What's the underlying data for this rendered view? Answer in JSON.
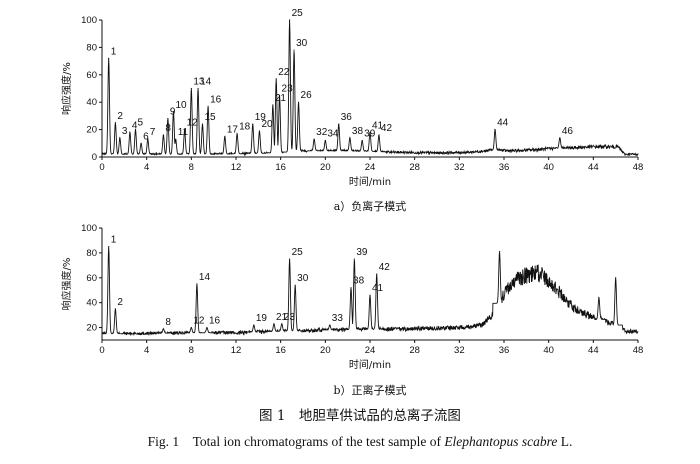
{
  "figure": {
    "title_cn": "图 1　地胆草供试品的总离子流图",
    "title_en_prefix": "Fig. 1　Total ion chromatograms of the test sample of ",
    "title_en_species": "Elephantopus scabre",
    "title_en_suffix": " L."
  },
  "chart_data": [
    {
      "type": "line",
      "subtitle": "a）负离子模式",
      "xlabel": "时间/min",
      "ylabel": "响应强度/%",
      "xlim": [
        0,
        48
      ],
      "ylim": [
        0,
        100
      ],
      "xticks": [
        0,
        4,
        8,
        12,
        16,
        20,
        24,
        28,
        32,
        36,
        40,
        44,
        48
      ],
      "yticks": [
        0,
        20,
        40,
        60,
        80,
        100
      ],
      "baseline": 2,
      "noise": 0.8,
      "background": [
        [
          0,
          2
        ],
        [
          10,
          2
        ],
        [
          16,
          3
        ],
        [
          18,
          4.5
        ],
        [
          22,
          4.5
        ],
        [
          26,
          3.5
        ],
        [
          30,
          3
        ],
        [
          33,
          3.5
        ],
        [
          35,
          5
        ],
        [
          37,
          4.5
        ],
        [
          40,
          6
        ],
        [
          44,
          7.5
        ],
        [
          46.2,
          7.5
        ],
        [
          46.8,
          2
        ],
        [
          48,
          2
        ]
      ],
      "line_color": "#111111",
      "peaks": [
        {
          "label": "1",
          "rt": 0.6,
          "height": 72
        },
        {
          "label": "2",
          "rt": 1.2,
          "height": 25
        },
        {
          "label": "3",
          "rt": 1.6,
          "height": 14
        },
        {
          "label": "4",
          "rt": 2.5,
          "height": 18
        },
        {
          "label": "5",
          "rt": 3.0,
          "height": 20
        },
        {
          "label": "6",
          "rt": 3.5,
          "height": 10
        },
        {
          "label": "7",
          "rt": 4.1,
          "height": 13
        },
        {
          "label": "8",
          "rt": 5.5,
          "height": 16
        },
        {
          "label": "9",
          "rt": 5.9,
          "height": 28
        },
        {
          "label": "10",
          "rt": 6.4,
          "height": 33
        },
        {
          "label": "11",
          "rt": 6.6,
          "height": 13
        },
        {
          "label": "12",
          "rt": 7.4,
          "height": 20
        },
        {
          "label": "13",
          "rt": 8.0,
          "height": 50
        },
        {
          "label": "14",
          "rt": 8.6,
          "height": 50
        },
        {
          "label": "15",
          "rt": 9.0,
          "height": 24
        },
        {
          "label": "16",
          "rt": 9.5,
          "height": 37
        },
        {
          "label": "17",
          "rt": 11.0,
          "height": 15
        },
        {
          "label": "18",
          "rt": 12.1,
          "height": 17
        },
        {
          "label": "19",
          "rt": 13.5,
          "height": 24
        },
        {
          "label": "20",
          "rt": 14.1,
          "height": 19
        },
        {
          "label": "21",
          "rt": 15.3,
          "height": 38
        },
        {
          "label": "22",
          "rt": 15.6,
          "height": 57
        },
        {
          "label": "23",
          "rt": 15.9,
          "height": 45
        },
        {
          "label": "25",
          "rt": 16.8,
          "height": 100
        },
        {
          "label": "26",
          "rt": 17.6,
          "height": 40
        },
        {
          "label": "30",
          "rt": 17.2,
          "height": 78
        },
        {
          "label": "32",
          "rt": 19.0,
          "height": 13
        },
        {
          "label": "34",
          "rt": 20.0,
          "height": 12
        },
        {
          "label": "36",
          "rt": 21.2,
          "height": 24
        },
        {
          "label": "38",
          "rt": 22.2,
          "height": 14
        },
        {
          "label": "39",
          "rt": 23.3,
          "height": 12
        },
        {
          "label": "41",
          "rt": 24.0,
          "height": 18
        },
        {
          "label": "42",
          "rt": 24.8,
          "height": 16
        },
        {
          "label": "44",
          "rt": 35.2,
          "height": 20
        },
        {
          "label": "46",
          "rt": 41.0,
          "height": 14
        }
      ]
    },
    {
      "type": "line",
      "subtitle": "b）正离子模式",
      "xlabel": "时间/min",
      "ylabel": "响应强度/%",
      "xlim": [
        0,
        48
      ],
      "ylim": [
        10,
        100
      ],
      "xticks": [
        0,
        4,
        8,
        12,
        16,
        20,
        24,
        28,
        32,
        36,
        40,
        44,
        48
      ],
      "yticks": [
        20,
        40,
        60,
        80,
        100
      ],
      "baseline": 15,
      "noise": 1.2,
      "background": [
        [
          0,
          15
        ],
        [
          12,
          16
        ],
        [
          20,
          18
        ],
        [
          28,
          19
        ],
        [
          32,
          20
        ],
        [
          34,
          22
        ],
        [
          35.2,
          32
        ],
        [
          36,
          47
        ],
        [
          37,
          58
        ],
        [
          38,
          62
        ],
        [
          39,
          64
        ],
        [
          40,
          58
        ],
        [
          41,
          48
        ],
        [
          42,
          38
        ],
        [
          43,
          32
        ],
        [
          44,
          28
        ],
        [
          46,
          22
        ],
        [
          47,
          17
        ],
        [
          48,
          17
        ]
      ],
      "line_color": "#111111",
      "peaks": [
        {
          "label": "1",
          "rt": 0.6,
          "height": 85
        },
        {
          "label": "2",
          "rt": 1.2,
          "height": 35
        },
        {
          "label": "8",
          "rt": 5.5,
          "height": 19
        },
        {
          "label": "12",
          "rt": 8.0,
          "height": 20
        },
        {
          "label": "14",
          "rt": 8.5,
          "height": 55
        },
        {
          "label": "16",
          "rt": 9.4,
          "height": 20
        },
        {
          "label": "19",
          "rt": 13.6,
          "height": 22
        },
        {
          "label": "21",
          "rt": 15.4,
          "height": 23
        },
        {
          "label": "23",
          "rt": 16.1,
          "height": 23
        },
        {
          "label": "25",
          "rt": 16.8,
          "height": 75
        },
        {
          "label": "30",
          "rt": 17.3,
          "height": 54
        },
        {
          "label": "33",
          "rt": 20.4,
          "height": 22
        },
        {
          "label": "38",
          "rt": 22.3,
          "height": 52
        },
        {
          "label": "39",
          "rt": 22.6,
          "height": 75
        },
        {
          "label": "41",
          "rt": 24.0,
          "height": 46
        },
        {
          "label": "42",
          "rt": 24.6,
          "height": 63
        },
        {
          "label": "",
          "rt": 35.6,
          "height": 81
        },
        {
          "label": "",
          "rt": 44.5,
          "height": 44
        },
        {
          "label": "",
          "rt": 46.0,
          "height": 60
        }
      ]
    }
  ]
}
